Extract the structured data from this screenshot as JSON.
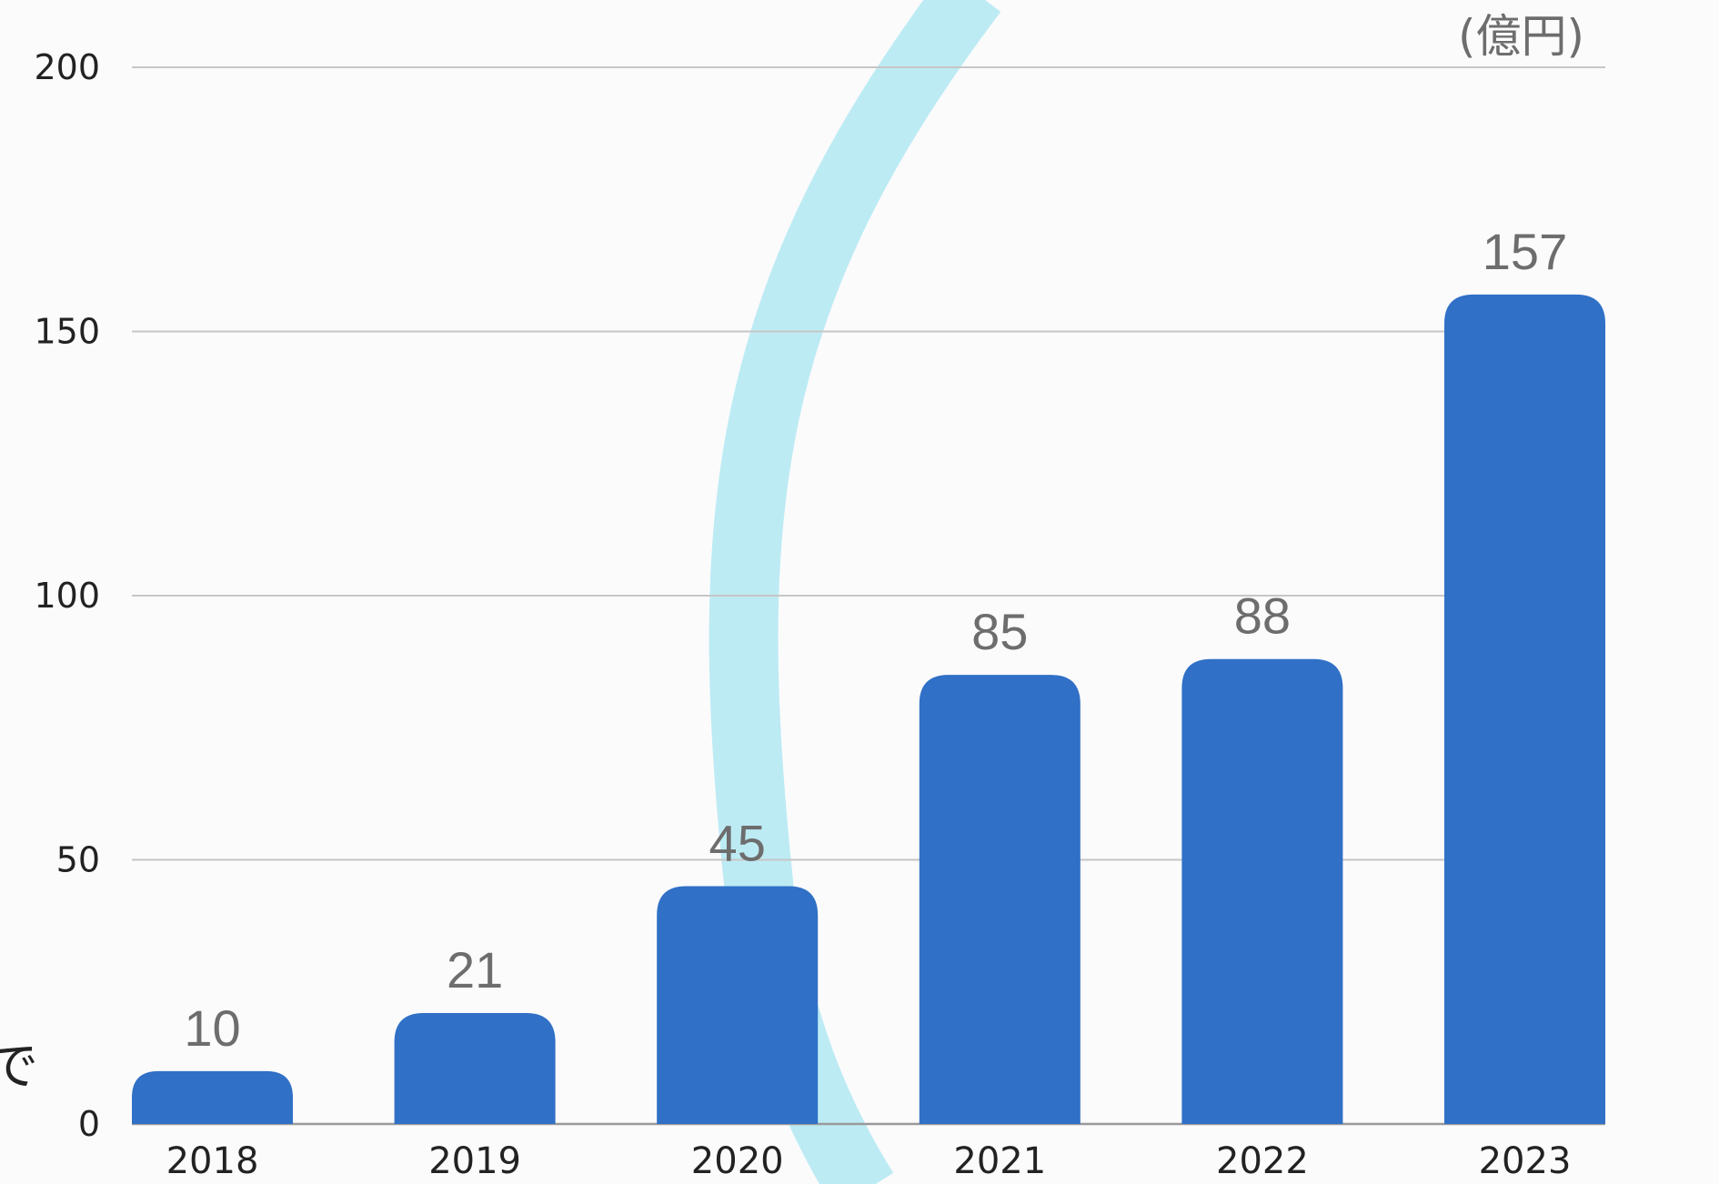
{
  "chart_data": {
    "type": "bar",
    "title": "",
    "xlabel": "",
    "ylabel": "",
    "unit_label": "(億円)",
    "categories": [
      "2018",
      "2019",
      "2020",
      "2021",
      "2022",
      "2023"
    ],
    "values": [
      10,
      21,
      45,
      85,
      88,
      157
    ],
    "data_labels": [
      "10",
      "21",
      "45",
      "85",
      "88",
      "157"
    ],
    "ylim": [
      0,
      200
    ],
    "yticks": [
      0,
      50,
      100,
      150,
      200
    ],
    "ytick_labels": [
      "0",
      "50",
      "100",
      "150",
      "200"
    ],
    "grid": true,
    "bar_color": "#3070c6",
    "accent_arc_color": "#bdebf4"
  },
  "cropped_text": "で"
}
